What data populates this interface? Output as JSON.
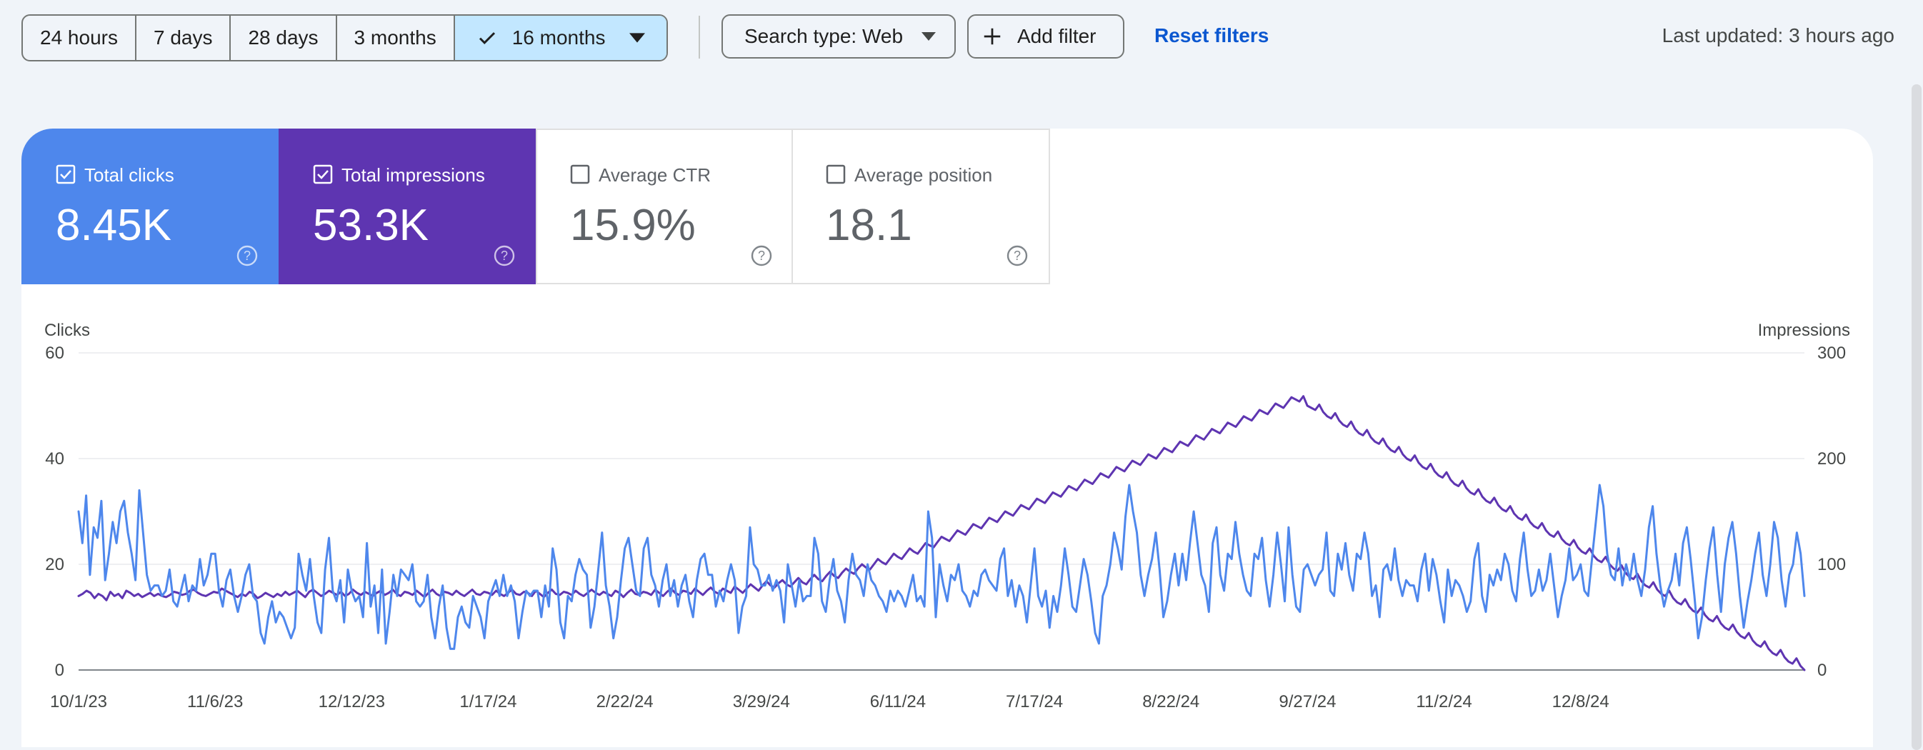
{
  "date_range": {
    "options": [
      "24 hours",
      "7 days",
      "28 days",
      "3 months",
      "16 months"
    ],
    "selected": "16 months"
  },
  "filters": {
    "search_type": "Search type: Web",
    "add_filter": "Add filter",
    "reset": "Reset filters"
  },
  "last_updated": "Last updated: 3 hours ago",
  "metrics": [
    {
      "label": "Total clicks",
      "value": "8.45K",
      "checked": true,
      "color": "#4e87ec"
    },
    {
      "label": "Total impressions",
      "value": "53.3K",
      "checked": true,
      "color": "#5e35b1"
    },
    {
      "label": "Average CTR",
      "value": "15.9%",
      "checked": false
    },
    {
      "label": "Average position",
      "value": "18.1",
      "checked": false
    }
  ],
  "colors": {
    "clicks": "#4e87ec",
    "impressions": "#5e35b1",
    "accent": "#0b57d0",
    "selected_chip": "#c2e7ff"
  },
  "chart_data": {
    "type": "line",
    "ylabel_left": "Clicks",
    "ylabel_right": "Impressions",
    "ylim_left": [
      0,
      60
    ],
    "ylim_right": [
      0,
      300
    ],
    "y_ticks_left": [
      0,
      20,
      40,
      60
    ],
    "y_ticks_right": [
      0,
      100,
      200,
      300
    ],
    "x_tick_labels": [
      "10/1/23",
      "11/6/23",
      "12/12/23",
      "1/17/24",
      "2/22/24",
      "3/29/24",
      "6/11/24",
      "7/17/24",
      "8/22/24",
      "9/27/24",
      "11/2/24",
      "12/8/24"
    ],
    "x_label_stride_days": 36,
    "first_day_index": 0,
    "last_day_index": 455,
    "grid": true,
    "series": [
      {
        "name": "Clicks",
        "axis": "left",
        "color": "#4e87ec",
        "values": [
          30,
          24,
          33,
          18,
          27,
          25,
          32,
          17,
          22,
          28,
          24,
          30,
          32,
          26,
          22,
          17,
          34,
          26,
          18,
          15,
          16,
          16,
          14,
          15,
          19,
          13,
          12,
          15,
          18,
          13,
          16,
          15,
          21,
          16,
          18,
          22,
          22,
          15,
          12,
          17,
          19,
          14,
          11,
          14,
          18,
          20,
          14,
          13,
          7,
          5,
          10,
          13,
          9,
          11,
          10,
          8,
          6,
          8,
          22,
          18,
          15,
          21,
          14,
          9,
          7,
          19,
          25,
          15,
          13,
          17,
          9,
          19,
          15,
          13,
          14,
          10,
          24,
          12,
          16,
          7,
          19,
          5,
          11,
          18,
          14,
          19,
          18,
          17,
          20,
          13,
          12,
          13,
          18,
          10,
          6,
          12,
          16,
          8,
          4,
          4,
          10,
          12,
          9,
          8,
          14,
          12,
          10,
          6,
          13,
          15,
          17,
          14,
          18,
          14,
          16,
          13,
          6,
          11,
          15,
          14,
          15,
          15,
          10,
          16,
          12,
          23,
          19,
          9,
          6,
          14,
          13,
          18,
          21,
          19,
          18,
          8,
          12,
          19,
          26,
          16,
          12,
          6,
          10,
          17,
          23,
          25,
          20,
          15,
          14,
          23,
          25,
          18,
          16,
          12,
          17,
          20,
          14,
          17,
          12,
          16,
          18,
          13,
          10,
          17,
          21,
          22,
          18,
          18,
          12,
          15,
          13,
          17,
          20,
          17,
          7,
          12,
          14,
          27,
          20,
          19,
          16,
          16,
          18,
          15,
          17,
          15,
          9,
          20,
          16,
          12,
          17,
          13,
          14,
          14,
          25,
          22,
          13,
          11,
          17,
          21,
          15,
          13,
          9,
          17,
          22,
          18,
          17,
          14,
          20,
          17,
          16,
          14,
          13,
          11,
          15,
          13,
          15,
          14,
          12,
          15,
          18,
          13,
          14,
          12,
          30,
          25,
          10,
          20,
          16,
          13,
          18,
          17,
          20,
          15,
          14,
          12,
          15,
          14,
          18,
          19,
          17,
          16,
          15,
          21,
          23,
          14,
          17,
          12,
          16,
          14,
          9,
          16,
          23,
          14,
          12,
          15,
          8,
          14,
          11,
          16,
          23,
          18,
          12,
          11,
          16,
          21,
          18,
          13,
          7,
          5,
          14,
          16,
          20,
          26,
          23,
          19,
          29,
          35,
          30,
          26,
          18,
          14,
          18,
          21,
          26,
          19,
          10,
          13,
          18,
          22,
          16,
          22,
          17,
          24,
          30,
          24,
          18,
          16,
          11,
          24,
          27,
          18,
          15,
          22,
          21,
          28,
          22,
          18,
          15,
          14,
          22,
          21,
          25,
          17,
          12,
          18,
          26,
          20,
          13,
          27,
          18,
          12,
          11,
          19,
          20,
          18,
          16,
          18,
          19,
          26,
          15,
          14,
          22,
          19,
          24,
          18,
          15,
          22,
          21,
          26,
          22,
          14,
          16,
          10,
          19,
          20,
          17,
          23,
          17,
          14,
          17,
          16,
          16,
          13,
          19,
          22,
          15,
          21,
          18,
          13,
          9,
          19,
          14,
          17,
          16,
          14,
          11,
          13,
          21,
          24,
          14,
          11,
          18,
          16,
          19,
          17,
          22,
          20,
          15,
          13,
          21,
          26,
          19,
          14,
          15,
          19,
          15,
          17,
          22,
          16,
          10,
          14,
          17,
          23,
          17,
          18,
          20,
          15,
          14,
          21,
          28,
          35,
          31,
          22,
          18,
          17,
          23,
          16,
          20,
          17,
          22,
          17,
          14,
          19,
          27,
          31,
          22,
          16,
          12,
          15,
          17,
          22,
          16,
          24,
          27,
          21,
          14,
          6,
          10,
          17,
          23,
          27,
          18,
          11,
          20,
          25,
          28,
          22,
          14,
          8,
          13,
          17,
          22,
          26,
          18,
          14,
          20,
          28,
          25,
          17,
          12,
          18,
          20,
          26,
          22,
          14
        ]
      },
      {
        "name": "Impressions",
        "axis": "right",
        "color": "#5e35b1",
        "values": [
          70,
          72,
          75,
          73,
          68,
          72,
          70,
          66,
          74,
          70,
          72,
          68,
          75,
          73,
          70,
          72,
          69,
          71,
          73,
          70,
          72,
          70,
          69,
          71,
          74,
          73,
          71,
          72,
          75,
          76,
          73,
          71,
          70,
          72,
          74,
          73,
          77,
          75,
          73,
          71,
          69,
          72,
          70,
          74,
          72,
          68,
          70,
          73,
          71,
          69,
          72,
          70,
          74,
          71,
          73,
          75,
          72,
          69,
          74,
          76,
          73,
          70,
          72,
          75,
          73,
          71,
          74,
          70,
          72,
          76,
          73,
          71,
          74,
          72,
          70,
          73,
          75,
          71,
          73,
          76,
          72,
          70,
          74,
          73,
          71,
          75,
          72,
          69,
          73,
          76,
          72,
          70,
          74,
          73,
          71,
          75,
          72,
          70,
          73,
          76,
          72,
          71,
          74,
          73,
          71,
          75,
          72,
          70,
          73,
          76,
          72,
          71,
          74,
          73,
          70,
          75,
          72,
          69,
          73,
          76,
          72,
          71,
          74,
          73,
          71,
          75,
          72,
          70,
          73,
          76,
          73,
          71,
          74,
          72,
          70,
          75,
          73,
          69,
          73,
          76,
          72,
          71,
          74,
          73,
          71,
          76,
          73,
          70,
          74,
          77,
          73,
          71,
          75,
          74,
          72,
          77,
          74,
          71,
          75,
          78,
          74,
          72,
          77,
          75,
          73,
          79,
          76,
          73,
          77,
          81,
          78,
          75,
          80,
          84,
          80,
          78,
          82,
          85,
          81,
          79,
          83,
          87,
          83,
          81,
          86,
          90,
          86,
          84,
          89,
          93,
          89,
          87,
          92,
          96,
          93,
          91,
          96,
          100,
          97,
          95,
          100,
          105,
          102,
          100,
          105,
          110,
          107,
          105,
          110,
          115,
          112,
          110,
          115,
          120,
          118,
          116,
          121,
          126,
          124,
          122,
          127,
          132,
          130,
          128,
          133,
          138,
          136,
          134,
          139,
          144,
          142,
          140,
          145,
          150,
          148,
          146,
          151,
          156,
          154,
          152,
          157,
          162,
          160,
          158,
          163,
          168,
          166,
          164,
          169,
          174,
          172,
          170,
          175,
          180,
          178,
          176,
          181,
          186,
          184,
          182,
          187,
          192,
          190,
          188,
          193,
          198,
          196,
          194,
          199,
          204,
          202,
          200,
          205,
          210,
          208,
          206,
          211,
          216,
          214,
          212,
          217,
          222,
          220,
          218,
          223,
          228,
          226,
          224,
          229,
          234,
          232,
          230,
          235,
          240,
          238,
          236,
          241,
          246,
          244,
          242,
          247,
          252,
          250,
          248,
          253,
          258,
          256,
          254,
          259,
          250,
          248,
          246,
          251,
          244,
          240,
          238,
          243,
          236,
          232,
          230,
          235,
          228,
          224,
          222,
          227,
          220,
          216,
          214,
          219,
          212,
          208,
          206,
          211,
          204,
          200,
          198,
          203,
          196,
          192,
          190,
          195,
          188,
          184,
          182,
          187,
          180,
          176,
          174,
          179,
          172,
          168,
          166,
          171,
          164,
          160,
          158,
          163,
          156,
          152,
          150,
          155,
          148,
          144,
          142,
          147,
          140,
          136,
          134,
          139,
          132,
          128,
          126,
          131,
          124,
          120,
          118,
          123,
          116,
          112,
          110,
          115,
          108,
          104,
          102,
          107,
          100,
          96,
          94,
          99,
          92,
          88,
          86,
          91,
          84,
          80,
          78,
          83,
          76,
          72,
          70,
          75,
          68,
          64,
          62,
          67,
          60,
          56,
          54,
          59,
          52,
          48,
          46,
          51,
          44,
          40,
          38,
          43,
          36,
          32,
          30,
          35,
          28,
          24,
          22,
          27,
          20,
          16,
          14,
          19,
          12,
          8,
          6,
          11,
          4,
          0
        ]
      }
    ]
  }
}
